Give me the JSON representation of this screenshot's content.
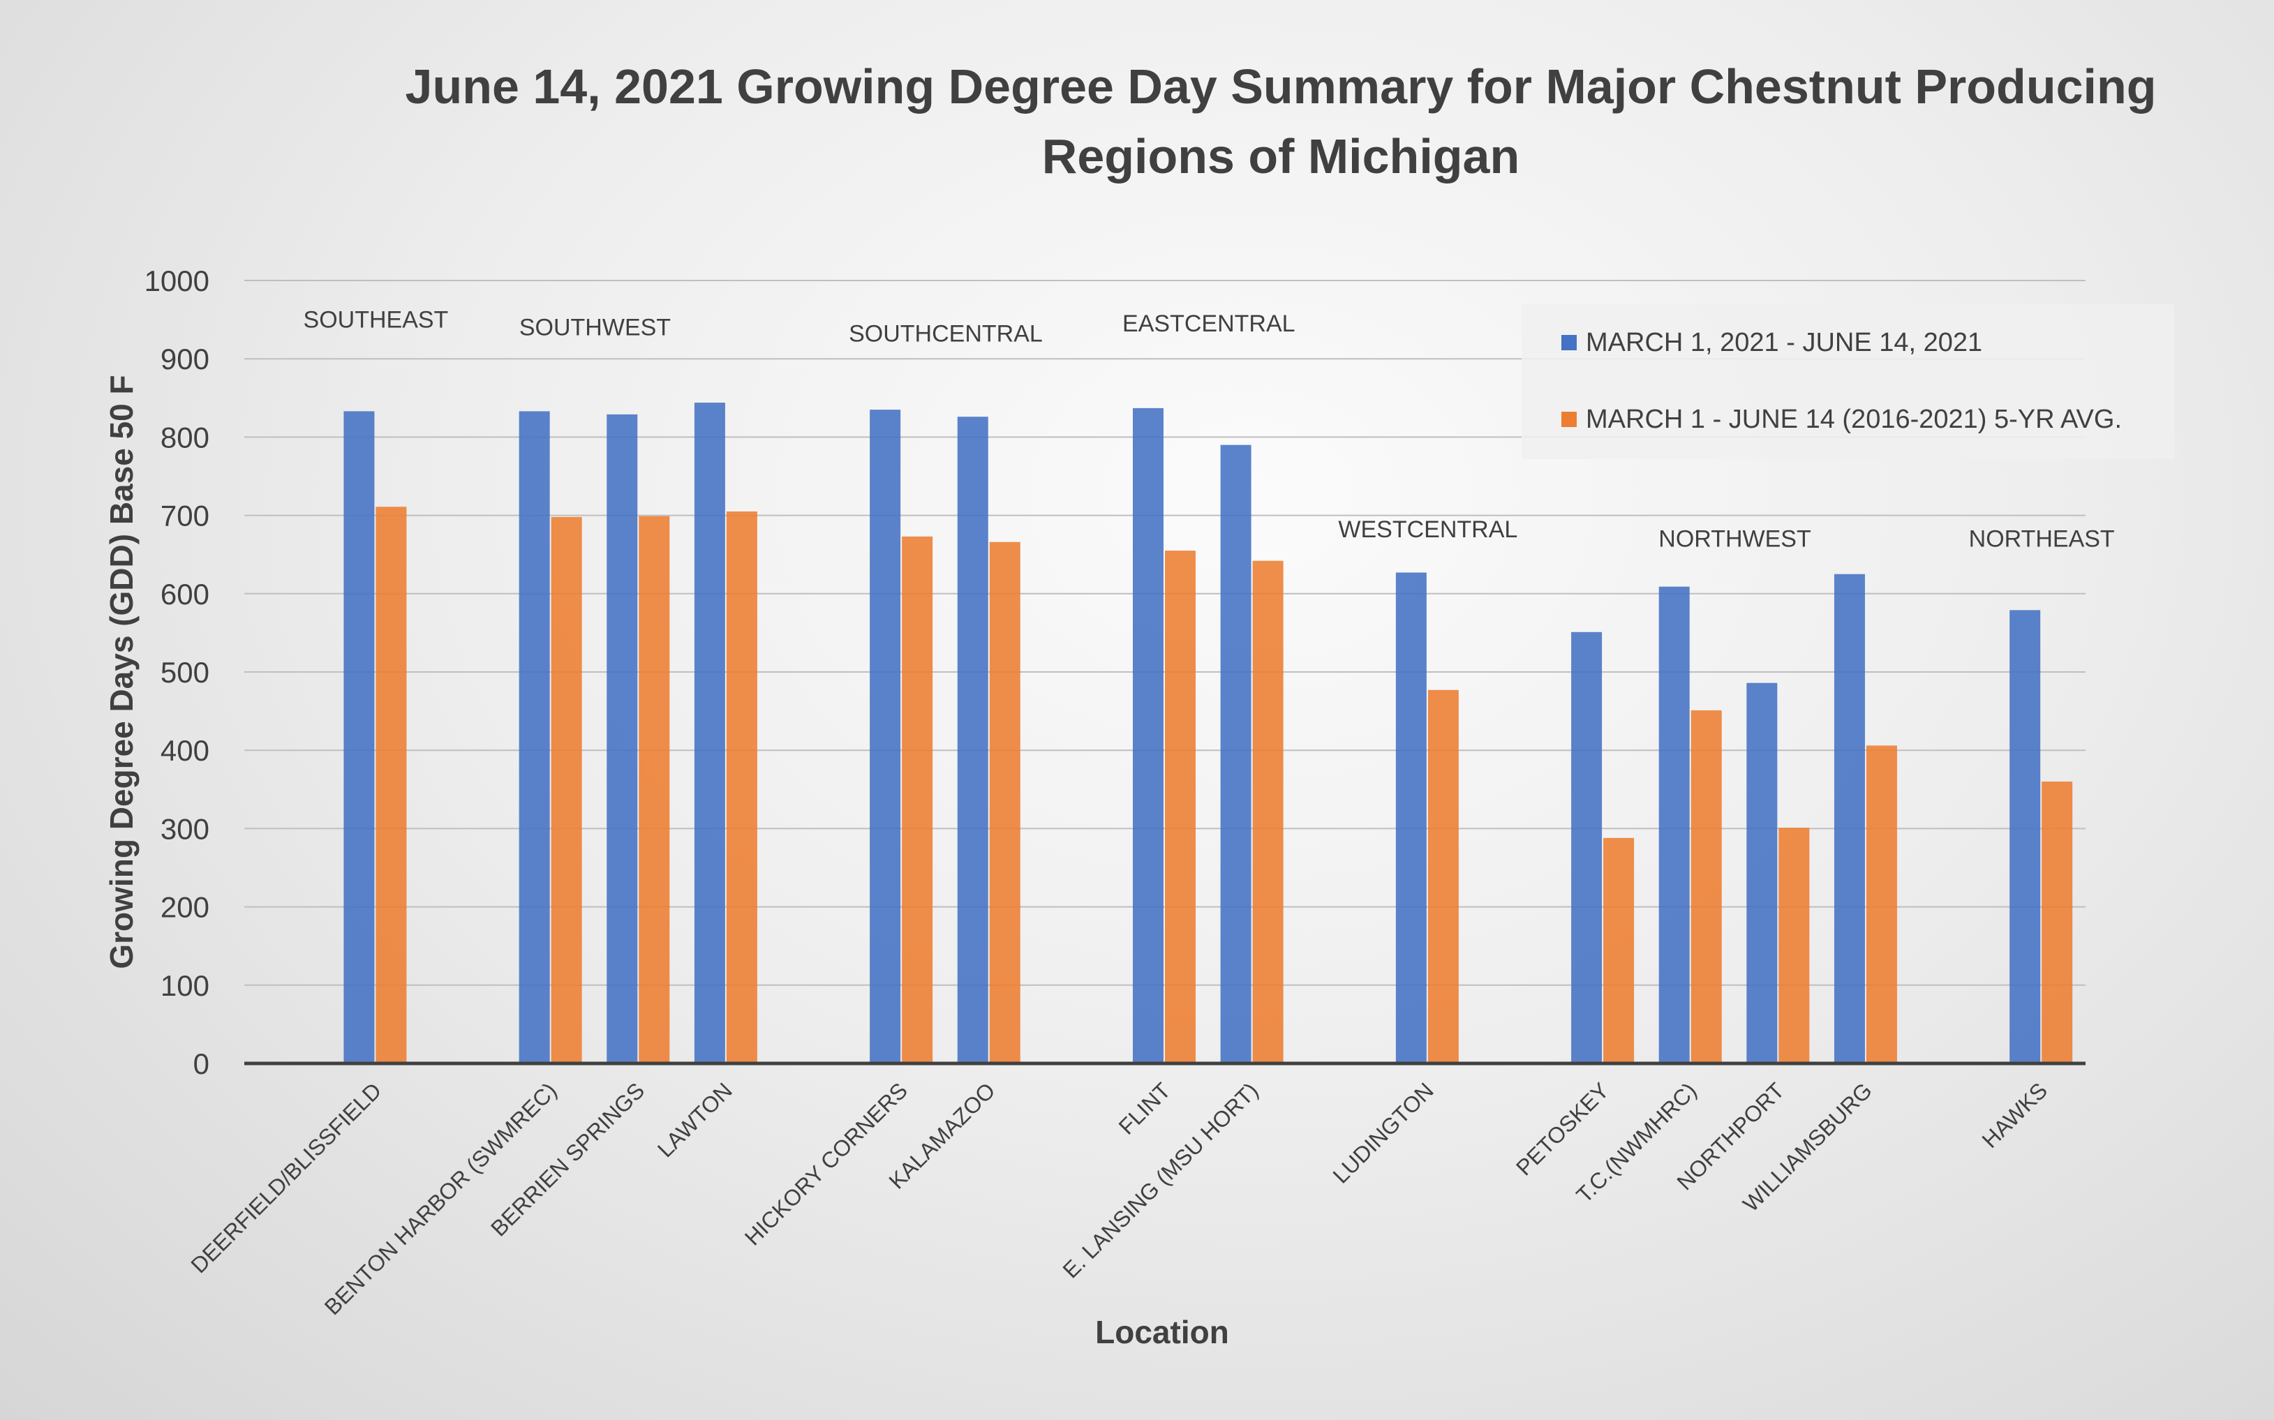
{
  "chart_data": {
    "type": "bar",
    "title": [
      "June 14, 2021 Growing Degree Day Summary for Major Chestnut Producing",
      "Regions of Michigan"
    ],
    "xlabel": "Location",
    "ylabel": "Growing Degree Days (GDD) Base 50 F",
    "ylim": [
      0,
      1000
    ],
    "yticks": [
      0,
      100,
      200,
      300,
      400,
      500,
      600,
      700,
      800,
      900,
      1000
    ],
    "grid": true,
    "legend_position": "top-right",
    "categories": [
      "",
      "DEERFIELD/BLISSFIELD",
      "",
      "BENTON HARBOR (SWMREC)",
      "BERRIEN SPRINGS",
      "LAWTON",
      "",
      "HICKORY CORNERS",
      "KALAMAZOO",
      "",
      "FLINT",
      "E. LANSING (MSU HORT)",
      "",
      "LUDINGTON",
      "",
      "PETOSKEY",
      "T.C.(NWMHRC)",
      "NORTHPORT",
      "WILLIAMSBURG",
      "",
      "HAWKS"
    ],
    "series": [
      {
        "name": "MARCH 1, 2021 - JUNE 14, 2021",
        "color": "#4472c4",
        "values": [
          null,
          833,
          null,
          833,
          829,
          844,
          null,
          835,
          826,
          null,
          837,
          790,
          null,
          627,
          null,
          551,
          609,
          486,
          625,
          null,
          579
        ]
      },
      {
        "name": "MARCH 1 - JUNE 14 (2016-2021) 5-YR AVG.",
        "color": "#ed7d31",
        "values": [
          null,
          711,
          null,
          698,
          699,
          705,
          null,
          673,
          666,
          null,
          655,
          642,
          null,
          477,
          null,
          288,
          451,
          301,
          406,
          null,
          360
        ]
      }
    ],
    "regions": [
      {
        "label": "SOUTHEAST",
        "from": 1,
        "to": 1
      },
      {
        "label": "SOUTHWEST",
        "from": 3,
        "to": 4
      },
      {
        "label": "SOUTHCENTRAL",
        "from": 7,
        "to": 8
      },
      {
        "label": "EASTCENTRAL",
        "from": 10,
        "to": 11
      },
      {
        "label": "WESTCENTRAL",
        "from": 13,
        "to": 13
      },
      {
        "label": "NORTHWEST",
        "from": 15,
        "to": 18
      },
      {
        "label": "NORTHEAST",
        "from": 20,
        "to": 20
      }
    ]
  }
}
